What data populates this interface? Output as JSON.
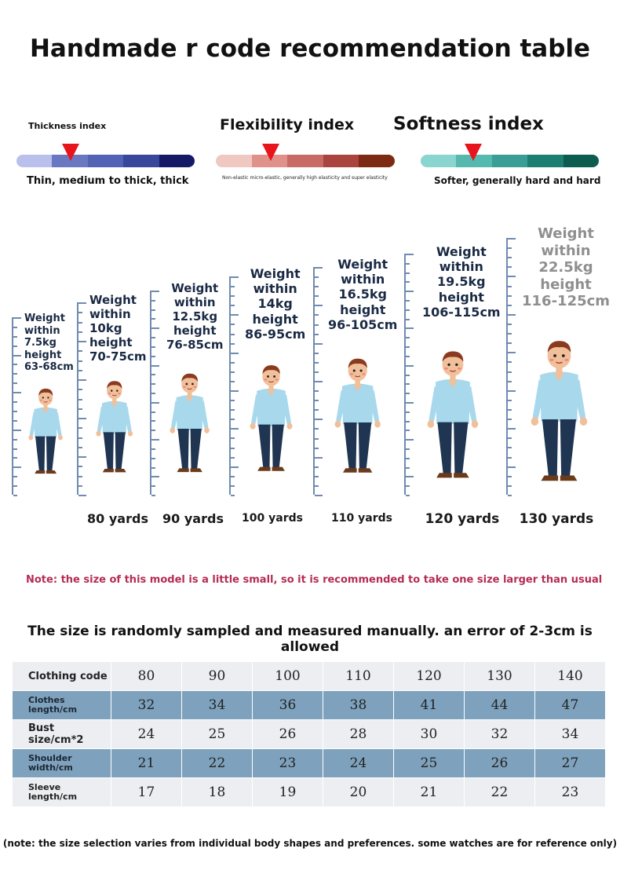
{
  "title": "Handmade r code recommendation table",
  "indices": [
    {
      "label": "Thickness index",
      "desc": "Thin, medium to thick, thick",
      "colors": [
        "#b9c0ec",
        "#6a78c2",
        "#5262b4",
        "#39479a",
        "#161a66"
      ],
      "marker_segment": 2
    },
    {
      "label": "Flexibility index",
      "desc": "Non-elastic micro-elastic, generally high elasticity and super elasticity",
      "colors": [
        "#f0c8c2",
        "#e0928a",
        "#c86b66",
        "#a9443e",
        "#7d2a14"
      ],
      "marker_segment": 2
    },
    {
      "label": "Softness index",
      "desc": "Softer, generally hard and hard",
      "colors": [
        "#8ad5cf",
        "#55b9b0",
        "#3a9e96",
        "#1d7e72",
        "#0d5c50"
      ],
      "marker_segment": 2
    }
  ],
  "sizes": [
    {
      "lines": [
        "Weight",
        "within",
        "7.5kg",
        "height",
        "63-68cm"
      ],
      "yard": ""
    },
    {
      "lines": [
        "Weight",
        "within",
        "10kg",
        "height",
        "70-75cm"
      ],
      "yard": "80 yards"
    },
    {
      "lines": [
        "Weight",
        "within",
        "12.5kg",
        "height",
        "76-85cm"
      ],
      "yard": "90 yards"
    },
    {
      "lines": [
        "Weight",
        "within",
        "14kg",
        "height",
        "86-95cm"
      ],
      "yard": "100 yards"
    },
    {
      "lines": [
        "Weight",
        "within",
        "16.5kg",
        "height",
        "96-105cm"
      ],
      "yard": "110 yards"
    },
    {
      "lines": [
        "Weight",
        "within",
        "19.5kg",
        "height",
        "106-115cm"
      ],
      "yard": "120 yards"
    },
    {
      "lines": [
        "Weight",
        "within",
        "22.5kg",
        "height",
        "116-125cm"
      ],
      "yard": "130 yards"
    }
  ],
  "note_small": "Note: the size of this model is a little small, so it is recommended to take one size larger than usual",
  "subtitle": "The size is randomly sampled and measured manually. an error of 2-3cm is allowed",
  "table": {
    "rows": [
      {
        "label": "Clothing code",
        "values": [
          "80",
          "90",
          "100",
          "110",
          "120",
          "130",
          "140"
        ]
      },
      {
        "label": "Clothes length/cm",
        "values": [
          "32",
          "34",
          "36",
          "38",
          "41",
          "44",
          "47"
        ]
      },
      {
        "label": "Bust size/cm*2",
        "values": [
          "24",
          "25",
          "26",
          "28",
          "30",
          "32",
          "34"
        ]
      },
      {
        "label": "Shoulder width/cm",
        "values": [
          "21",
          "22",
          "23",
          "24",
          "25",
          "26",
          "27"
        ]
      },
      {
        "label": "Sleeve length/cm",
        "values": [
          "17",
          "18",
          "19",
          "20",
          "21",
          "22",
          "23"
        ]
      }
    ]
  },
  "footnote": "(note: the size selection varies from individual body shapes and preferences. some watches are for reference only)"
}
